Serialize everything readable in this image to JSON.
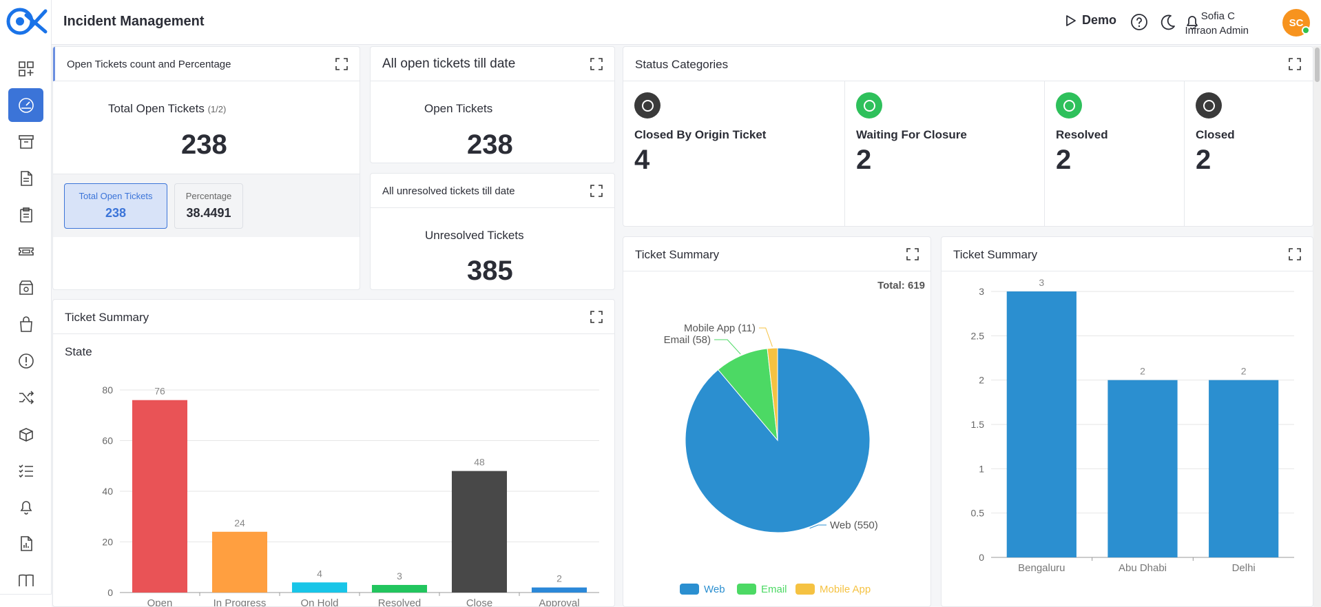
{
  "app": {
    "title": "Incident Management",
    "demo_label": "Demo",
    "user": {
      "name": "Sofia C",
      "role": "Infraon Admin",
      "initials": "SC"
    }
  },
  "sidebar": {
    "items": [
      {
        "icon": "grid-icon",
        "active": false
      },
      {
        "icon": "dashboard-gauge-icon",
        "active": true
      },
      {
        "icon": "archive-box-icon",
        "active": false
      },
      {
        "icon": "document-icon",
        "active": false
      },
      {
        "icon": "clipboard-icon",
        "active": false
      },
      {
        "icon": "ticket-icon",
        "active": false
      },
      {
        "icon": "package-gear-icon",
        "active": false
      },
      {
        "icon": "shopping-bag-icon",
        "active": false
      },
      {
        "icon": "alert-circle-icon",
        "active": false
      },
      {
        "icon": "shuffle-icon",
        "active": false
      },
      {
        "icon": "box-open-icon",
        "active": false
      },
      {
        "icon": "checklist-icon",
        "active": false
      },
      {
        "icon": "bell-icon",
        "active": false
      },
      {
        "icon": "report-file-icon",
        "active": false
      },
      {
        "icon": "book-icon",
        "active": false
      }
    ]
  },
  "open_tickets_card": {
    "title": "Open Tickets count and Percentage",
    "label": "Total Open Tickets",
    "label_suffix": "(1/2)",
    "value": "238",
    "pill_total_label": "Total Open Tickets",
    "pill_total_value": "238",
    "pill_pct_label": "Percentage",
    "pill_pct_value": "38.4491"
  },
  "all_open_card": {
    "title": "All open tickets till date",
    "label": "Open Tickets",
    "value": "238"
  },
  "unresolved_card": {
    "title": "All unresolved tickets till date",
    "label": "Unresolved Tickets",
    "value": "385"
  },
  "status_card": {
    "title": "Status Categories",
    "items": [
      {
        "label": "Closed By Origin Ticket",
        "value": "4",
        "color": "#3a3a3a"
      },
      {
        "label": "Waiting For Closure",
        "value": "2",
        "color": "#2ec05b"
      },
      {
        "label": "Resolved",
        "value": "2",
        "color": "#2ec05b"
      },
      {
        "label": "Closed",
        "value": "2",
        "color": "#3a3a3a"
      }
    ]
  },
  "state_chart_card": {
    "title": "Ticket Summary",
    "subtitle": "State"
  },
  "pie_card": {
    "title": "Ticket Summary",
    "total_label": "Total: 619"
  },
  "location_card": {
    "title": "Ticket Summary"
  },
  "chart_data": [
    {
      "type": "bar",
      "title": "State",
      "categories": [
        "Open",
        "In Progress",
        "On Hold",
        "Resolved",
        "Close",
        "Approval"
      ],
      "values": [
        76,
        24,
        4,
        3,
        48,
        2
      ],
      "colors": [
        "#e95356",
        "#ff9f40",
        "#18c5e8",
        "#22c55e",
        "#484848",
        "#2b88d8"
      ],
      "ylim": [
        0,
        80
      ],
      "yticks": [
        0,
        20,
        40,
        60,
        80
      ],
      "grid": true
    },
    {
      "type": "pie",
      "title": "Total: 619",
      "categories": [
        "Web",
        "Email",
        "Mobile App"
      ],
      "values": [
        550,
        58,
        11
      ],
      "labels": [
        "Web (550)",
        "Email (58)",
        "Mobile App (11)"
      ],
      "colors": [
        "#2b8fd0",
        "#4cd964",
        "#f5c242"
      ],
      "legend": "bottom"
    },
    {
      "type": "bar",
      "categories": [
        "Bengaluru",
        "Abu Dhabi",
        "Delhi"
      ],
      "values": [
        3,
        2,
        2
      ],
      "colors": [
        "#2b8fd0",
        "#2b8fd0",
        "#2b8fd0"
      ],
      "ylim": [
        0,
        3
      ],
      "yticks": [
        "0",
        "0.5",
        "1",
        "1.5",
        "2",
        "2.5",
        "3"
      ],
      "grid": true
    }
  ]
}
